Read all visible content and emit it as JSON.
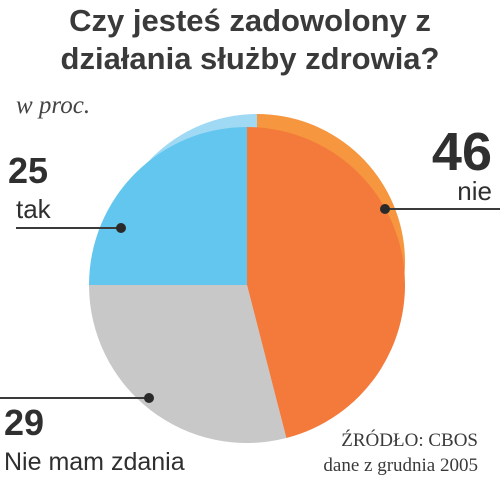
{
  "chart_data": {
    "type": "pie",
    "title": "Czy jesteś zadowolony z działania służby zdrowia?",
    "unit": "w proc.",
    "slices": [
      {
        "label": "nie",
        "value": 46,
        "color": "#f47a3c",
        "top_color": "#f6963f"
      },
      {
        "label": "Nie mam zdania",
        "value": 29,
        "color": "#c8c8c8",
        "top_color": "#d8d8d8"
      },
      {
        "label": "tak",
        "value": 25,
        "color": "#63c6ef",
        "top_color": "#9fd9f3"
      }
    ],
    "source": "ŹRÓDŁO: CBOS",
    "source_date": "dane z grudnia 2005"
  }
}
